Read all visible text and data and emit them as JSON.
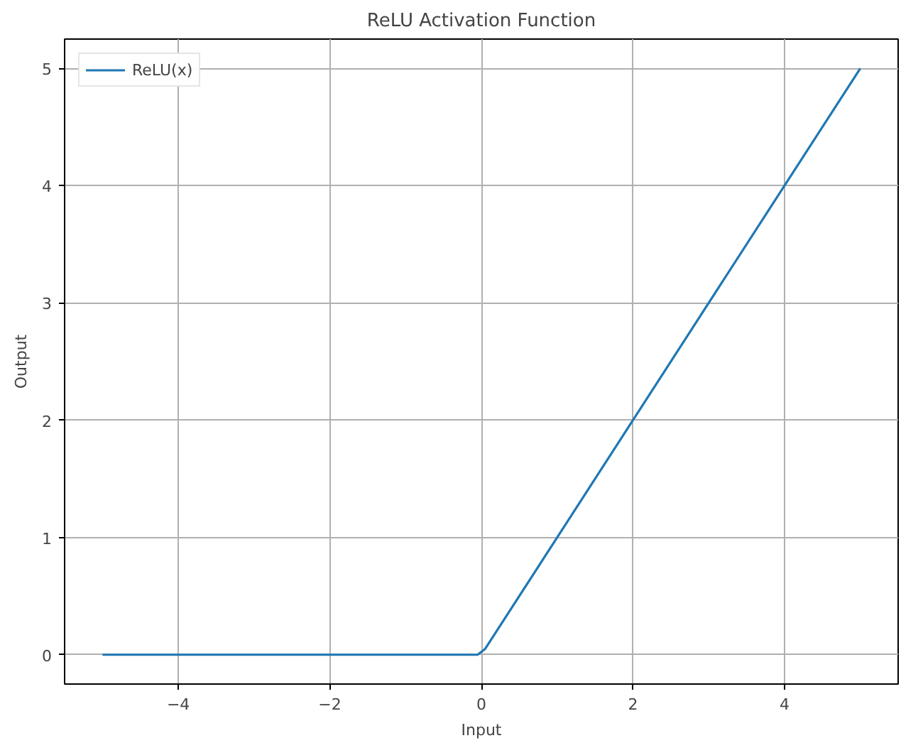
{
  "chart_data": {
    "type": "line",
    "title": "ReLU Activation Function",
    "xlabel": "Input",
    "ylabel": "Output",
    "x": [
      -5,
      -0.05,
      0.05,
      5
    ],
    "series": [
      {
        "name": "ReLU(x)",
        "color": "#1f77b4",
        "values": [
          0,
          0,
          0.05,
          5
        ]
      }
    ],
    "xlim": [
      -5.5,
      5.5
    ],
    "ylim": [
      -0.25,
      5.25
    ],
    "xticks": [
      {
        "value": -4,
        "label": "−4"
      },
      {
        "value": -2,
        "label": "−2"
      },
      0,
      2,
      4
    ],
    "yticks": [
      0,
      1,
      2,
      3,
      4,
      5
    ],
    "grid": true,
    "legend": "top left",
    "marker": "none",
    "line_style": "solid"
  }
}
